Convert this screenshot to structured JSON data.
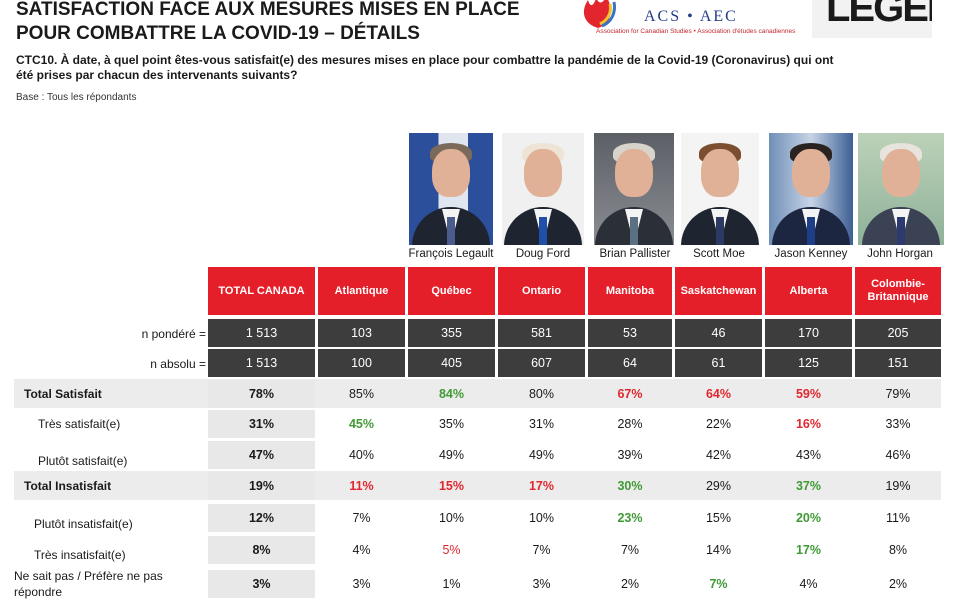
{
  "title": "SATISFACTION FACE AUX MESURES MISES EN PLACE POUR COMBATTRE LA COVID-19 – DÉTAILS",
  "question": "CTC10. À date, à quel point êtes-vous satisfait(e) des mesures mises en place pour combattre la pandémie de la Covid-19 (Coronavirus) qui ont été prises par chacun des intervenants suivants?",
  "base": "Base : Tous les répondants",
  "logos": {
    "acs_text": "ACS • AEC",
    "acs_sub": "Association for Canadian Studies • Association d'études canadiennes",
    "leger": "LEGER"
  },
  "people": [
    "François Legault",
    "Doug Ford",
    "Brian Pallister",
    "Scott Moe",
    "Jason Kenney",
    "John Horgan"
  ],
  "columns": [
    "TOTAL CANADA",
    "Atlantique",
    "Québec",
    "Ontario",
    "Manitoba",
    "Saskatchewan",
    "Alberta",
    "Colombie-Britannique"
  ],
  "n_rows": [
    {
      "label": "n pondéré =",
      "values": [
        "1 513",
        "103",
        "355",
        "581",
        "53",
        "46",
        "170",
        "205"
      ]
    },
    {
      "label": "n absolu =",
      "values": [
        "1 513",
        "100",
        "405",
        "607",
        "64",
        "61",
        "125",
        "151"
      ]
    }
  ],
  "rows": [
    {
      "label": "Total Satisfait",
      "values": [
        "78%",
        "85%",
        "84%",
        "80%",
        "67%",
        "64%",
        "59%",
        "79%"
      ]
    },
    {
      "label": "Très satisfait(e)",
      "values": [
        "31%",
        "45%",
        "35%",
        "31%",
        "28%",
        "22%",
        "16%",
        "33%"
      ]
    },
    {
      "label": "Plutôt satisfait(e)",
      "values": [
        "47%",
        "40%",
        "49%",
        "49%",
        "39%",
        "42%",
        "43%",
        "46%"
      ]
    },
    {
      "label": "Total Insatisfait",
      "values": [
        "19%",
        "11%",
        "15%",
        "17%",
        "30%",
        "29%",
        "37%",
        "19%"
      ]
    },
    {
      "label": "Plutôt insatisfait(e)",
      "values": [
        "12%",
        "7%",
        "10%",
        "10%",
        "23%",
        "15%",
        "20%",
        "11%"
      ]
    },
    {
      "label": "Très insatisfait(e)",
      "values": [
        "8%",
        "4%",
        "5%",
        "7%",
        "7%",
        "14%",
        "17%",
        "8%"
      ]
    },
    {
      "label": "Ne sait pas / Préfère ne pas répondre",
      "values": [
        "3%",
        "3%",
        "1%",
        "3%",
        "2%",
        "7%",
        "4%",
        "2%"
      ]
    }
  ],
  "colors": {
    "header_red": "#e51f2a",
    "dark_cell": "#3d3d3d",
    "sig_green": "#3f9a35",
    "sig_red": "#e0272f"
  }
}
